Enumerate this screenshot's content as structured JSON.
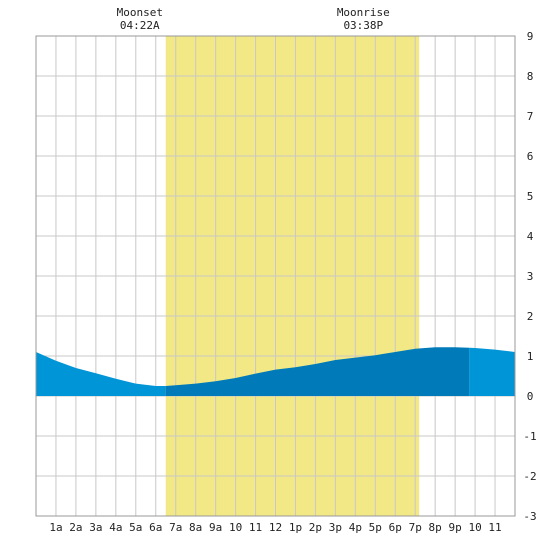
{
  "chart_data": {
    "type": "area",
    "title": "",
    "xlabel": "",
    "ylabel": "",
    "xlim": [
      0,
      24
    ],
    "ylim": [
      -3,
      9
    ],
    "x_ticks": [
      {
        "x": 1,
        "label": "1a"
      },
      {
        "x": 2,
        "label": "2a"
      },
      {
        "x": 3,
        "label": "3a"
      },
      {
        "x": 4,
        "label": "4a"
      },
      {
        "x": 5,
        "label": "5a"
      },
      {
        "x": 6,
        "label": "6a"
      },
      {
        "x": 7,
        "label": "7a"
      },
      {
        "x": 8,
        "label": "8a"
      },
      {
        "x": 9,
        "label": "9a"
      },
      {
        "x": 10,
        "label": "10"
      },
      {
        "x": 11,
        "label": "11"
      },
      {
        "x": 12,
        "label": "12"
      },
      {
        "x": 13,
        "label": "1p"
      },
      {
        "x": 14,
        "label": "2p"
      },
      {
        "x": 15,
        "label": "3p"
      },
      {
        "x": 16,
        "label": "4p"
      },
      {
        "x": 17,
        "label": "5p"
      },
      {
        "x": 18,
        "label": "6p"
      },
      {
        "x": 19,
        "label": "7p"
      },
      {
        "x": 20,
        "label": "8p"
      },
      {
        "x": 21,
        "label": "9p"
      },
      {
        "x": 22,
        "label": "10"
      },
      {
        "x": 23,
        "label": "11"
      }
    ],
    "y_ticks": [
      -3,
      -2,
      -1,
      0,
      1,
      2,
      3,
      4,
      5,
      6,
      7,
      8,
      9
    ],
    "grid": true,
    "daylight": {
      "start": 6.5,
      "end": 19.2
    },
    "night_band": {
      "start": 21.7,
      "end": 24
    },
    "tide": {
      "x": [
        0,
        1,
        2,
        3,
        4,
        5,
        6,
        6.5,
        7,
        8,
        9,
        10,
        11,
        12,
        13,
        14,
        15,
        16,
        17,
        18,
        19,
        20,
        21,
        22,
        23,
        24
      ],
      "y": [
        1.1,
        0.88,
        0.7,
        0.57,
        0.43,
        0.31,
        0.25,
        0.25,
        0.27,
        0.31,
        0.37,
        0.45,
        0.56,
        0.66,
        0.72,
        0.8,
        0.9,
        0.96,
        1.02,
        1.1,
        1.18,
        1.22,
        1.22,
        1.2,
        1.16,
        1.1
      ]
    },
    "annotations": [
      {
        "name": "Moonset",
        "time": "04:22A",
        "x": 5.2
      },
      {
        "name": "Moonrise",
        "time": "03:38P",
        "x": 16.4
      }
    ],
    "colors": {
      "daylight": "#f2e885",
      "tide_night": "#0095d6",
      "tide_day": "#007ab8",
      "grid": "#c8c8c8"
    }
  }
}
